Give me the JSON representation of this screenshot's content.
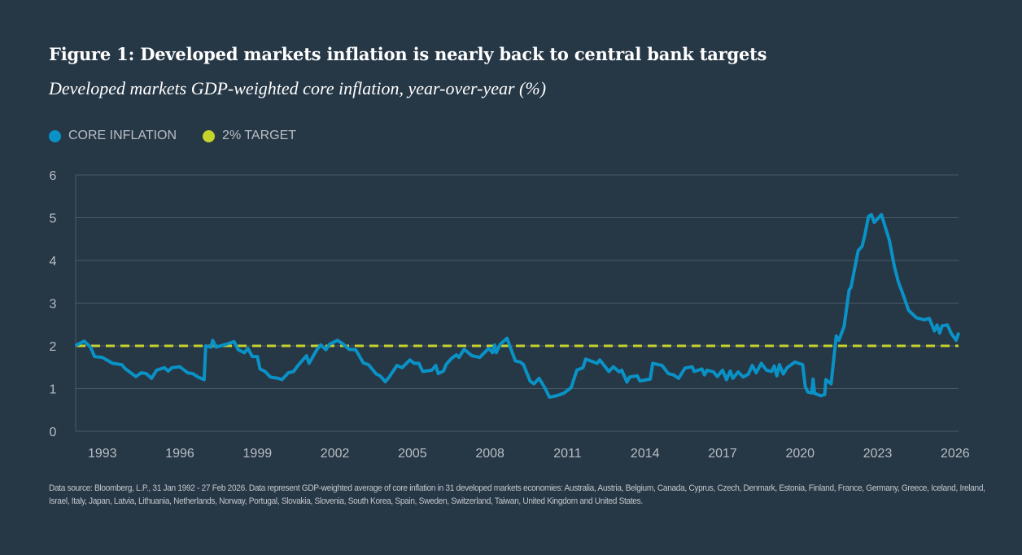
{
  "chart_data": {
    "type": "line",
    "title": "Figure 1: Developed markets inflation is nearly back to central bank targets",
    "subtitle": "Developed markets GDP-weighted core inflation, year-over-year (%)",
    "xlabel": "",
    "ylabel": "",
    "xlim": [
      1992.0,
      2026.15
    ],
    "ylim": [
      0,
      6
    ],
    "y_ticks": [
      "0",
      "1",
      "2",
      "3",
      "4",
      "5",
      "6"
    ],
    "x_ticks": [
      "1993",
      "1996",
      "1999",
      "2002",
      "2005",
      "2008",
      "2011",
      "2014",
      "2017",
      "2020",
      "2023",
      "2026"
    ],
    "grid": "horizontal",
    "legend_position": "top-left",
    "series": [
      {
        "name": "CORE INFLATION",
        "color": "#0a92c6",
        "x": [
          1992.0,
          1992.3,
          1992.54,
          1992.7,
          1993.0,
          1993.4,
          1993.75,
          1993.9,
          1994.1,
          1994.3,
          1994.5,
          1994.7,
          1994.9,
          1995.1,
          1995.4,
          1995.55,
          1995.7,
          1996.0,
          1996.3,
          1996.5,
          1996.7,
          1996.94,
          1997.0,
          1997.2,
          1997.27,
          1997.4,
          1997.85,
          1998.1,
          1998.26,
          1998.5,
          1998.63,
          1998.8,
          1999.0,
          1999.1,
          1999.3,
          1999.5,
          1999.8,
          1999.95,
          2000.2,
          2000.4,
          2000.6,
          2000.9,
          2001.0,
          2001.3,
          2001.45,
          2001.65,
          2001.8,
          2002.1,
          2002.3,
          2002.55,
          2002.8,
          2002.9,
          2003.1,
          2003.3,
          2003.6,
          2003.75,
          2003.95,
          2004.1,
          2004.4,
          2004.6,
          2004.9,
          2005.07,
          2005.25,
          2005.4,
          2005.75,
          2005.9,
          2006.0,
          2006.2,
          2006.3,
          2006.5,
          2006.7,
          2006.8,
          2007.0,
          2007.3,
          2007.6,
          2007.95,
          2008.1,
          2008.18,
          2008.24,
          2008.4,
          2008.66,
          2008.98,
          2009.17,
          2009.3,
          2009.55,
          2009.7,
          2009.9,
          2010.15,
          2010.3,
          2010.57,
          2010.85,
          2011.14,
          2011.36,
          2011.6,
          2011.7,
          2012.15,
          2012.25,
          2012.6,
          2012.77,
          2013.0,
          2013.1,
          2013.3,
          2013.4,
          2013.7,
          2013.8,
          2014.2,
          2014.3,
          2014.66,
          2014.9,
          2015.1,
          2015.3,
          2015.55,
          2015.83,
          2015.9,
          2016.2,
          2016.3,
          2016.4,
          2016.65,
          2016.8,
          2017.0,
          2017.15,
          2017.3,
          2017.4,
          2017.6,
          2017.8,
          2018.0,
          2018.15,
          2018.3,
          2018.5,
          2018.7,
          2018.9,
          2019.0,
          2019.1,
          2019.2,
          2019.35,
          2019.5,
          2019.8,
          2020.1,
          2020.2,
          2020.3,
          2020.45,
          2020.5,
          2020.56,
          2020.8,
          2020.95,
          2021.0,
          2021.2,
          2021.4,
          2021.5,
          2021.7,
          2021.9,
          2021.97,
          2022.25,
          2022.4,
          2022.5,
          2022.65,
          2022.76,
          2022.87,
          2023.15,
          2023.3,
          2023.45,
          2023.64,
          2023.8,
          2023.98,
          2024.2,
          2024.5,
          2024.8,
          2025.0,
          2025.2,
          2025.3,
          2025.4,
          2025.5,
          2025.7,
          2025.85,
          2026.04,
          2026.12
        ],
        "values": [
          2.02,
          2.11,
          1.97,
          1.75,
          1.73,
          1.59,
          1.56,
          1.46,
          1.37,
          1.28,
          1.37,
          1.35,
          1.24,
          1.43,
          1.49,
          1.41,
          1.49,
          1.51,
          1.37,
          1.35,
          1.27,
          1.21,
          2.0,
          1.97,
          2.13,
          1.97,
          2.05,
          2.1,
          1.91,
          1.84,
          1.94,
          1.75,
          1.75,
          1.46,
          1.4,
          1.27,
          1.24,
          1.21,
          1.37,
          1.4,
          1.56,
          1.77,
          1.59,
          1.91,
          2.02,
          1.91,
          2.04,
          2.13,
          2.05,
          1.92,
          1.91,
          1.81,
          1.6,
          1.56,
          1.34,
          1.3,
          1.16,
          1.27,
          1.54,
          1.49,
          1.67,
          1.59,
          1.59,
          1.4,
          1.43,
          1.54,
          1.35,
          1.41,
          1.56,
          1.7,
          1.79,
          1.73,
          1.92,
          1.77,
          1.73,
          1.94,
          1.84,
          2.02,
          1.84,
          2.04,
          2.18,
          1.65,
          1.62,
          1.56,
          1.18,
          1.11,
          1.24,
          0.99,
          0.8,
          0.83,
          0.89,
          1.02,
          1.43,
          1.49,
          1.69,
          1.59,
          1.67,
          1.4,
          1.51,
          1.39,
          1.43,
          1.15,
          1.27,
          1.3,
          1.18,
          1.22,
          1.59,
          1.54,
          1.35,
          1.32,
          1.24,
          1.48,
          1.51,
          1.4,
          1.46,
          1.32,
          1.43,
          1.39,
          1.28,
          1.43,
          1.21,
          1.41,
          1.24,
          1.39,
          1.27,
          1.34,
          1.54,
          1.37,
          1.59,
          1.43,
          1.4,
          1.53,
          1.3,
          1.56,
          1.34,
          1.49,
          1.62,
          1.56,
          1.05,
          0.92,
          0.9,
          1.22,
          0.89,
          0.83,
          0.86,
          1.21,
          1.11,
          2.23,
          2.13,
          2.45,
          3.31,
          3.37,
          4.23,
          4.33,
          4.58,
          5.03,
          5.07,
          4.89,
          5.07,
          4.77,
          4.48,
          3.88,
          3.5,
          3.21,
          2.83,
          2.66,
          2.61,
          2.64,
          2.35,
          2.49,
          2.3,
          2.47,
          2.49,
          2.29,
          2.13,
          2.28
        ]
      },
      {
        "name": "2% TARGET",
        "color": "#c5d32a",
        "x": [
          1992.0,
          2026.15
        ],
        "values": [
          2,
          2
        ]
      }
    ]
  },
  "footnote": "Data source: Bloomberg, L.P., 31 Jan 1992 - 27 Feb 2026. Data represent GDP-weighted average of core inflation in 31 developed markets economies: Australia, Austria, Belgium, Canada, Cyprus, Czech, Denmark, Estonia, Finland, France, Germany, Greece, Iceland, Ireland, Israel, Italy, Japan, Latvia, Lithuania, Netherlands, Norway, Portugal, Slovakia, Slovenia, South Korea, Spain, Sweden, Switzerland, Taiwan, United Kingdom and United States.",
  "colors": {
    "background": "#263746",
    "grid": "#4a5a68",
    "tick_text": "#b9bec4"
  }
}
